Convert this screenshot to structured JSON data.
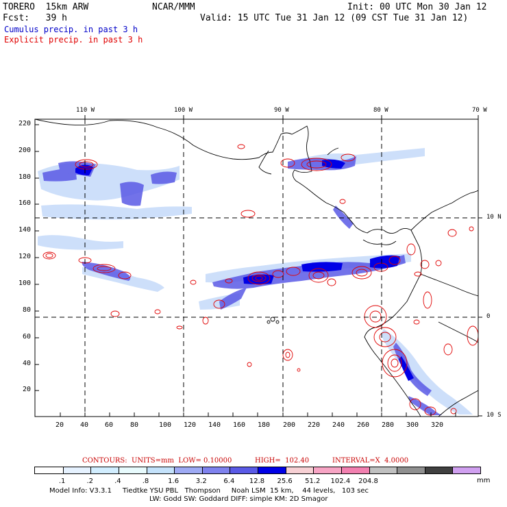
{
  "header": {
    "model": "TORERO  15km ARW",
    "org": "NCAR/MMM",
    "init": "Init: 00 UTC Mon 30 Jan 12",
    "fcst": "Fcst:   39 h",
    "valid": "Valid: 15 UTC Tue 31 Jan 12 (09 CST Tue 31 Jan 12)"
  },
  "legend": {
    "cumulus": "Cumulus precip. in past 3 h",
    "explicit": "Explicit precip. in past 3 h"
  },
  "map": {
    "lon_labels": [
      "110 W",
      "100 W",
      "90 W",
      "80 W",
      "70 W"
    ],
    "lat_labels": [
      "10 N",
      "0",
      "10 S"
    ],
    "y_ticks": [
      "220",
      "200",
      "180",
      "160",
      "140",
      "120",
      "100",
      "80",
      "60",
      "40",
      "20"
    ],
    "x_ticks": [
      "20",
      "40",
      "60",
      "80",
      "100",
      "120",
      "140",
      "160",
      "180",
      "200",
      "220",
      "240",
      "260",
      "280",
      "300",
      "320"
    ]
  },
  "contours_info": {
    "label": "CONTOURS:  UNITS=mm  LOW= 0.10000",
    "high": "HIGH=  102.40",
    "interval": "INTERVAL=X  4.0000"
  },
  "colorbar": {
    "colors": [
      "#ffffff",
      "#e6f2ff",
      "#d2eeff",
      "#e8fbfd",
      "#c4e2fb",
      "#9eaaf4",
      "#7f82ee",
      "#5a5ae6",
      "#0000e6",
      "#f7d0d4",
      "#f7a4c4",
      "#f280b0",
      "#c0c0c0",
      "#909090",
      "#404040",
      "#d0a0f0"
    ],
    "labels": [
      ".1",
      ".2",
      ".4",
      ".8",
      "1.6",
      "3.2",
      "6.4",
      "12.8",
      "25.6",
      "51.2",
      "102.4",
      "204.8"
    ],
    "unit": "mm"
  },
  "model_info": {
    "line1": "Model Info: V3.3.1     Tiedtke YSU PBL   Thompson     Noah LSM  15 km,    44 levels,   103 sec",
    "line2": "LW: Godd SW: Goddard DIFF: simple KM: 2D Smagor"
  }
}
